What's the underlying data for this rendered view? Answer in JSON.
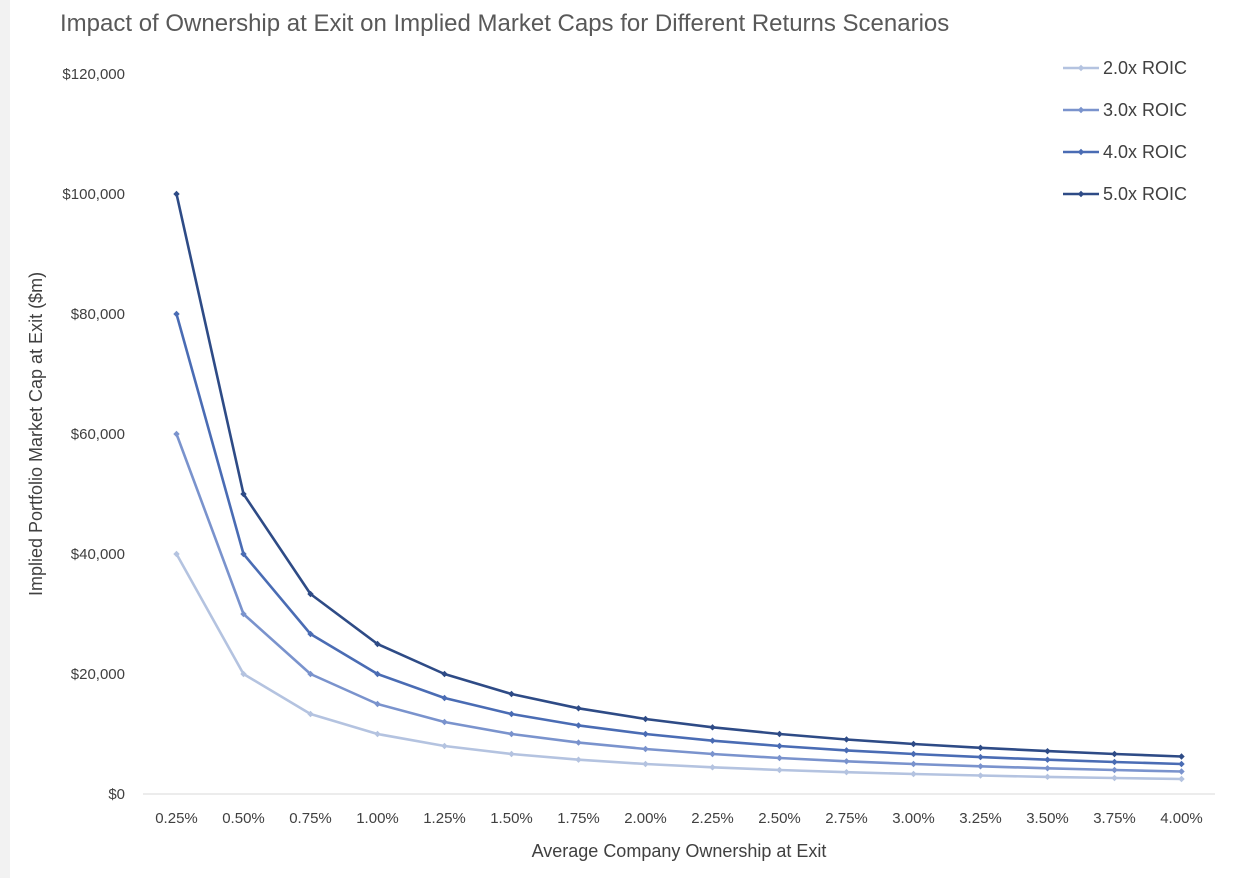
{
  "chart_data": {
    "type": "line",
    "title": "Impact of Ownership at Exit on Implied Market Caps for Different Returns Scenarios",
    "xlabel": "Average Company Ownership at Exit",
    "ylabel": "Implied Portfolio Market Cap at Exit ($m)",
    "categories": [
      "0.25%",
      "0.50%",
      "0.75%",
      "1.00%",
      "1.25%",
      "1.50%",
      "1.75%",
      "2.00%",
      "2.25%",
      "2.50%",
      "2.75%",
      "3.00%",
      "3.25%",
      "3.50%",
      "3.75%",
      "4.00%"
    ],
    "ylim": [
      0,
      120000
    ],
    "yticks": [
      0,
      20000,
      40000,
      60000,
      80000,
      100000,
      120000
    ],
    "ytick_labels": [
      "$0",
      "$20,000",
      "$40,000",
      "$60,000",
      "$80,000",
      "$100,000",
      "$120,000"
    ],
    "grid": false,
    "legend_position": "top-right",
    "series": [
      {
        "name": "2.0x ROIC",
        "color": "#b4c3e0",
        "values": [
          40000,
          20000,
          13333,
          10000,
          8000,
          6667,
          5714,
          5000,
          4444,
          4000,
          3636,
          3333,
          3077,
          2857,
          2667,
          2500
        ]
      },
      {
        "name": "3.0x ROIC",
        "color": "#7a93cd",
        "values": [
          60000,
          30000,
          20000,
          15000,
          12000,
          10000,
          8571,
          7500,
          6667,
          6000,
          5455,
          5000,
          4615,
          4286,
          4000,
          3750
        ]
      },
      {
        "name": "4.0x ROIC",
        "color": "#4a6cb4",
        "values": [
          80000,
          40000,
          26667,
          20000,
          16000,
          13333,
          11429,
          10000,
          8889,
          8000,
          7273,
          6667,
          6154,
          5714,
          5333,
          5000
        ]
      },
      {
        "name": "5.0x ROIC",
        "color": "#2e4b86",
        "values": [
          100000,
          50000,
          33333,
          25000,
          20000,
          16667,
          14286,
          12500,
          11111,
          10000,
          9091,
          8333,
          7692,
          7143,
          6667,
          6250
        ]
      }
    ]
  }
}
